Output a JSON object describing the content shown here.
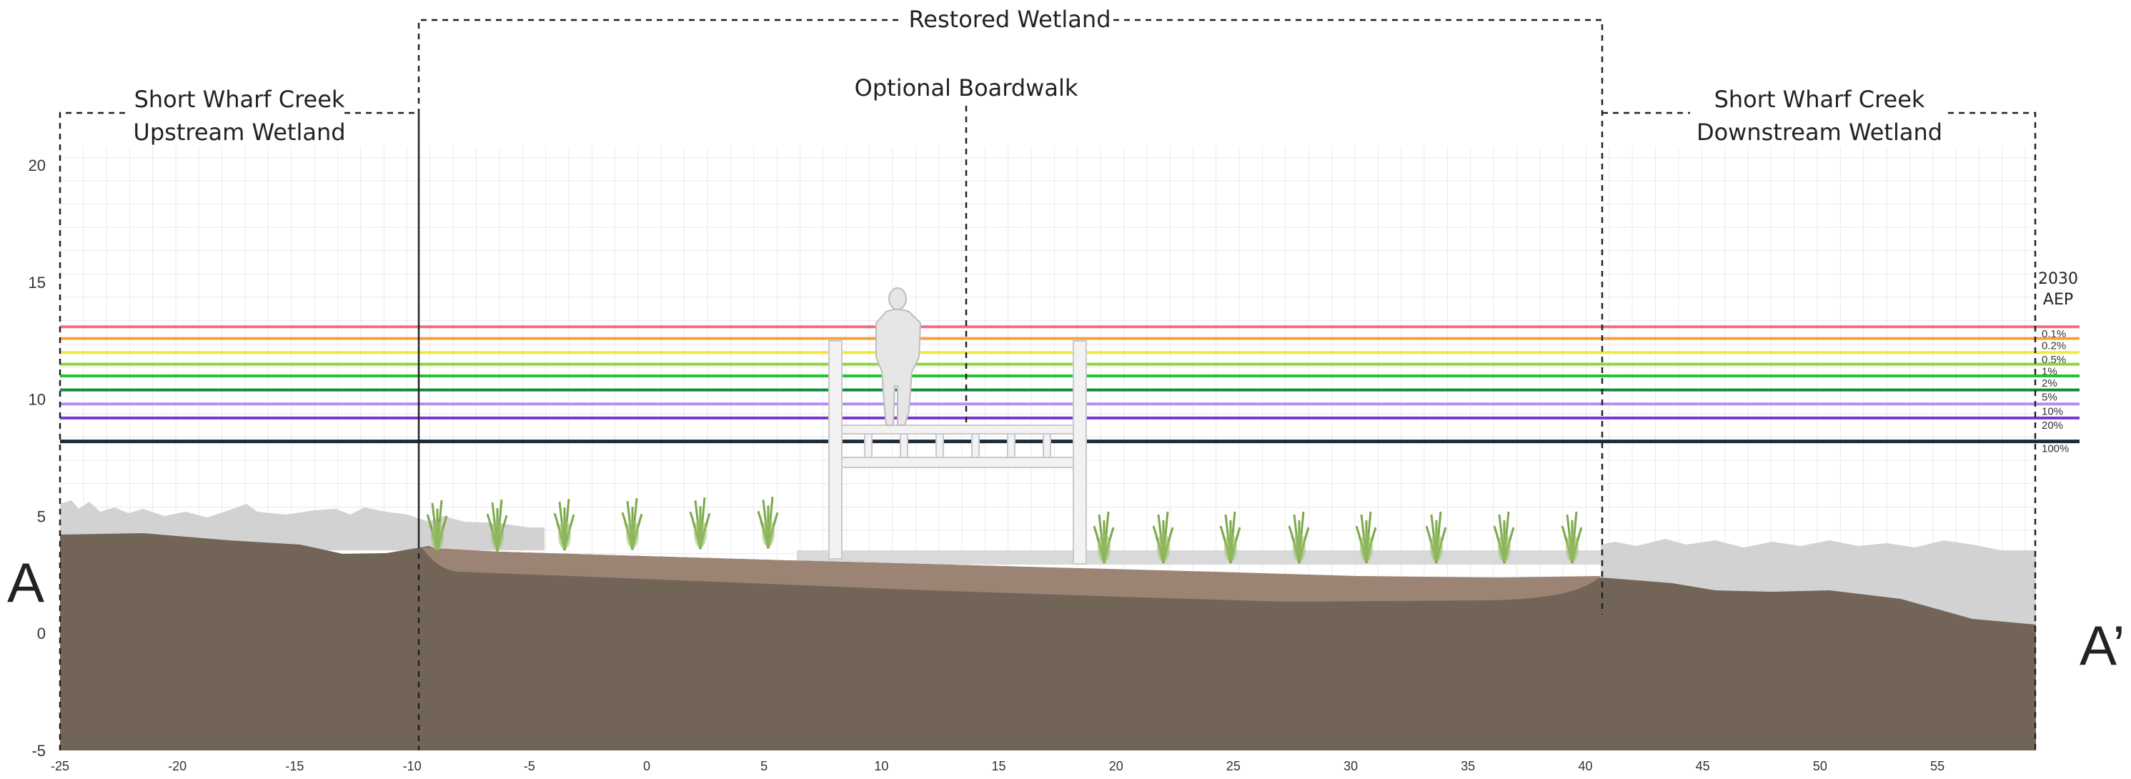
{
  "section": {
    "start_label": "A",
    "end_label": "A’"
  },
  "zones": {
    "upstream": {
      "line1": "Short Wharf Creek",
      "line2": "Upstream Wetland"
    },
    "restored": {
      "label": "Restored Wetland"
    },
    "boardwalk": {
      "label": "Optional Boardwalk"
    },
    "downstream": {
      "line1": "Short Wharf Creek",
      "line2": "Downstream Wetland"
    }
  },
  "zone_extents": {
    "upstream": [
      -25,
      -9.8
    ],
    "restored": [
      -9.8,
      40.8
    ],
    "boardwalk_marker": 13.7,
    "downstream": [
      40.8,
      59.2
    ]
  },
  "axes": {
    "x_ticks": [
      -25,
      -20,
      -15,
      -10,
      -5,
      0,
      5,
      10,
      15,
      20,
      25,
      30,
      35,
      40,
      45,
      50,
      55
    ],
    "y_ticks": [
      20,
      15,
      10,
      5,
      0,
      -5
    ],
    "x_range": [
      -25,
      59.2
    ],
    "y_range": [
      -5,
      20.8
    ]
  },
  "flood_levels": {
    "title_line1": "2030",
    "title_line2": "AEP",
    "levels": [
      {
        "label": "0.1%",
        "elevation": 13.1,
        "color": "#f26d7d"
      },
      {
        "label": "0.2%",
        "elevation": 12.6,
        "color": "#f7a13b"
      },
      {
        "label": "0.5%",
        "elevation": 12.0,
        "color": "#f2e93a"
      },
      {
        "label": "1%",
        "elevation": 11.5,
        "color": "#8fd63a"
      },
      {
        "label": "2%",
        "elevation": 11.0,
        "color": "#22c232"
      },
      {
        "label": "5%",
        "elevation": 10.4,
        "color": "#0e8a3a"
      },
      {
        "label": "10%",
        "elevation": 9.8,
        "color": "#b68cf0"
      },
      {
        "label": "20%",
        "elevation": 9.2,
        "color": "#7a34d6"
      },
      {
        "label": "100%",
        "elevation": 8.2,
        "color": "#1a2a38"
      }
    ]
  },
  "colors": {
    "ground": "#726558",
    "restored_fill": "#9c8474",
    "marsh_grass": "#d2d2d2",
    "plants": "#7ca84a",
    "grid": "#d6d6d6",
    "boardwalk": "#f2f2f2"
  }
}
